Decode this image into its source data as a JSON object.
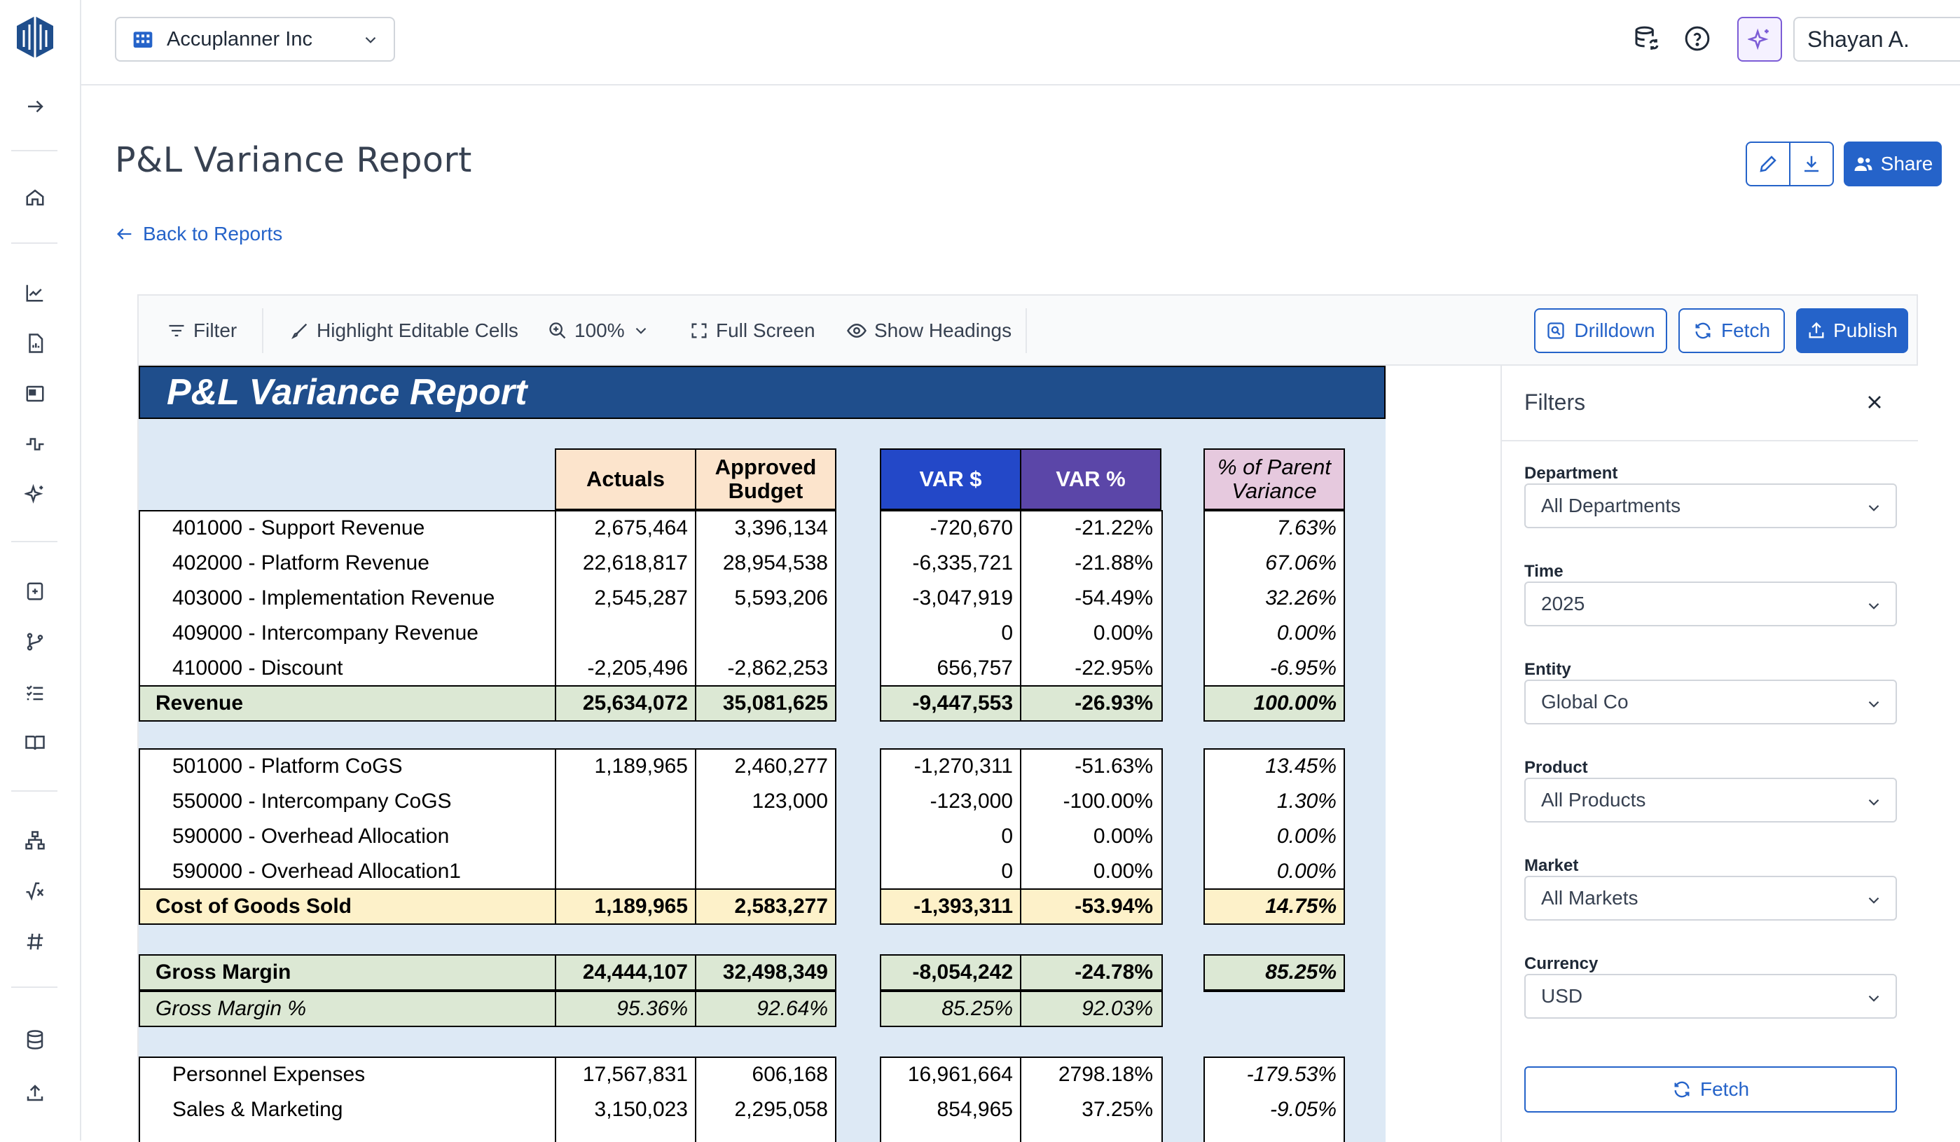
{
  "app": {
    "company": "Accuplanner Inc",
    "user": "Shayan A.",
    "accent_color": "#2563c9",
    "ai_color": "#7c5cd6"
  },
  "sidebar": {
    "icons": [
      "logo-icon",
      "expand-arrow-icon",
      "home-icon",
      "line-chart-icon",
      "report-icon",
      "dashboard-icon",
      "pulse-icon",
      "ai-sparkle-icon",
      "sheet-icon",
      "branch-icon",
      "checklist-icon",
      "book-icon",
      "hierarchy-icon",
      "formula-icon",
      "hash-icon",
      "database-icon",
      "upload-icon"
    ]
  },
  "header": {
    "title": "P&L Variance Report",
    "back_link": "Back to Reports",
    "share_label": "Share"
  },
  "toolbar": {
    "filter": "Filter",
    "highlight": "Highlight Editable Cells",
    "zoom": "100%",
    "fullscreen": "Full Screen",
    "show_headings": "Show Headings",
    "drilldown": "Drilldown",
    "fetch": "Fetch",
    "publish": "Publish"
  },
  "sheet": {
    "title": "P&L Variance Report",
    "columns": {
      "actuals": "Actuals",
      "budget": "Approved Budget",
      "var_amt": "VAR $",
      "var_pct": "VAR %",
      "parent": "% of Parent Variance"
    },
    "rows": [
      {
        "label": "401000 - Support Revenue",
        "a": "2,675,464",
        "b": "3,396,134",
        "v": "-720,670",
        "vp": "-21.22%",
        "p": "7.63%",
        "type": "line",
        "sec": 0
      },
      {
        "label": "402000 - Platform Revenue",
        "a": "22,618,817",
        "b": "28,954,538",
        "v": "-6,335,721",
        "vp": "-21.88%",
        "p": "67.06%",
        "type": "line",
        "sec": 0
      },
      {
        "label": "403000 - Implementation Revenue",
        "a": "2,545,287",
        "b": "5,593,206",
        "v": "-3,047,919",
        "vp": "-54.49%",
        "p": "32.26%",
        "type": "line",
        "sec": 0
      },
      {
        "label": "409000 - Intercompany Revenue",
        "a": "",
        "b": "",
        "v": "0",
        "vp": "0.00%",
        "p": "0.00%",
        "type": "line",
        "sec": 0
      },
      {
        "label": "410000 - Discount",
        "a": "-2,205,496",
        "b": "-2,862,253",
        "v": "656,757",
        "vp": "-22.95%",
        "p": "-6.95%",
        "type": "line",
        "sec": 0
      },
      {
        "label": "Revenue",
        "a": "25,634,072",
        "b": "35,081,625",
        "v": "-9,447,553",
        "vp": "-26.93%",
        "p": "100.00%",
        "type": "total-green",
        "sec": 0
      },
      {
        "label": "501000 - Platform CoGS",
        "a": "1,189,965",
        "b": "2,460,277",
        "v": "-1,270,311",
        "vp": "-51.63%",
        "p": "13.45%",
        "type": "line",
        "sec": 1
      },
      {
        "label": "550000 - Intercompany CoGS",
        "a": "",
        "b": "123,000",
        "v": "-123,000",
        "vp": "-100.00%",
        "p": "1.30%",
        "type": "line",
        "sec": 1
      },
      {
        "label": "590000 - Overhead Allocation",
        "a": "",
        "b": "",
        "v": "0",
        "vp": "0.00%",
        "p": "0.00%",
        "type": "line",
        "sec": 1
      },
      {
        "label": "590000 - Overhead Allocation1",
        "a": "",
        "b": "",
        "v": "0",
        "vp": "0.00%",
        "p": "0.00%",
        "type": "line",
        "sec": 1
      },
      {
        "label": "Cost of Goods Sold",
        "a": "1,189,965",
        "b": "2,583,277",
        "v": "-1,393,311",
        "vp": "-53.94%",
        "p": "14.75%",
        "type": "total-yellow",
        "sec": 1
      },
      {
        "label": "Gross Margin",
        "a": "24,444,107",
        "b": "32,498,349",
        "v": "-8,054,242",
        "vp": "-24.78%",
        "p": "85.25%",
        "type": "total-green",
        "sec": 2
      },
      {
        "label": "Gross Margin %",
        "a": "95.36%",
        "b": "92.64%",
        "v": "85.25%",
        "vp": "92.03%",
        "p": "",
        "type": "pct-green",
        "sec": 2
      },
      {
        "label": "Personnel Expenses",
        "a": "17,567,831",
        "b": "606,168",
        "v": "16,961,664",
        "vp": "2798.18%",
        "p": "-179.53%",
        "type": "line",
        "sec": 3
      },
      {
        "label": "Sales & Marketing",
        "a": "3,150,023",
        "b": "2,295,058",
        "v": "854,965",
        "vp": "37.25%",
        "p": "-9.05%",
        "type": "line",
        "sec": 3
      }
    ]
  },
  "filters": {
    "title": "Filters",
    "fields": [
      {
        "label": "Department",
        "value": "All Departments"
      },
      {
        "label": "Time",
        "value": "2025"
      },
      {
        "label": "Entity",
        "value": "Global Co"
      },
      {
        "label": "Product",
        "value": "All Products"
      },
      {
        "label": "Market",
        "value": "All Markets"
      },
      {
        "label": "Currency",
        "value": "USD"
      }
    ],
    "fetch_label": "Fetch"
  }
}
